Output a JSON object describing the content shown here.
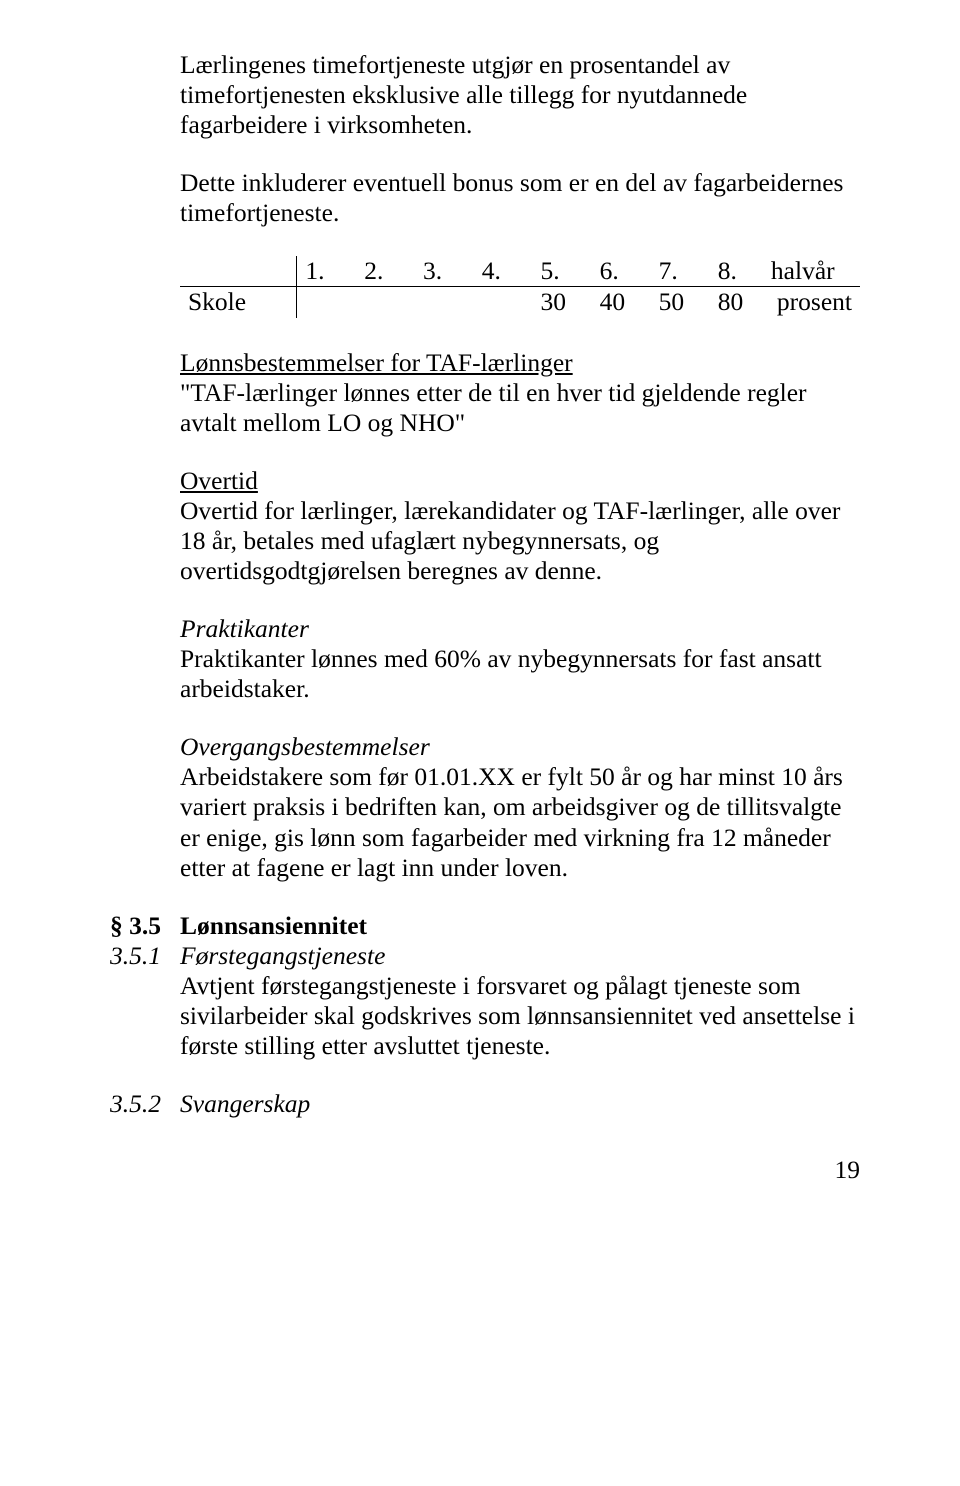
{
  "intro": {
    "p1": "Lærlingenes timefortjeneste utgjør en prosentandel av timefortjenesten eksklusive alle tillegg for nyutdannede fagarbeidere i virksomheten.",
    "p2": "Dette inkluderer eventuell bonus som er en del av fagarbeidernes timefortjeneste."
  },
  "table": {
    "headers": [
      "1.",
      "2.",
      "3.",
      "4.",
      "5.",
      "6.",
      "7.",
      "8.",
      "halvår"
    ],
    "row_label": "Skole",
    "row_values": [
      "30",
      "40",
      "50",
      "80",
      "prosent"
    ]
  },
  "lonn": {
    "heading": "Lønnsbestemmelser for TAF-lærlinger",
    "text": "\"TAF-lærlinger lønnes etter de til en hver tid gjeldende regler avtalt mellom LO og NHO\""
  },
  "overtid": {
    "heading": "Overtid",
    "text": "Overtid for lærlinger, lærekandidater og TAF-lærlinger, alle over 18 år, betales med ufaglært nybegynnersats, og overtidsgodtgjørelsen beregnes av denne."
  },
  "praktikanter": {
    "heading": "Praktikanter",
    "text": "Praktikanter lønnes med 60% av nybegynnersats for fast ansatt arbeidstaker."
  },
  "overgang": {
    "heading": "Overgangsbestemmelser",
    "text": "Arbeidstakere som før 01.01.XX er fylt 50 år og har minst 10 års variert praksis i bedriften kan, om arbeidsgiver og de tillitsvalgte er enige, gis lønn som fagarbeider med virkning fra 12 måneder etter at fagene er lagt inn under loven."
  },
  "s35": {
    "num": "§ 3.5",
    "title": "Lønnsansiennitet"
  },
  "s351": {
    "num": "3.5.1",
    "title": "Førstegangstjeneste",
    "text": "Avtjent førstegangstjeneste i forsvaret og pålagt tjeneste som sivilarbeider skal godskrives som lønnsansiennitet ved ansettelse i første stilling etter avsluttet tjeneste."
  },
  "s352": {
    "num": "3.5.2",
    "title": "Svangerskap"
  },
  "page": "19"
}
